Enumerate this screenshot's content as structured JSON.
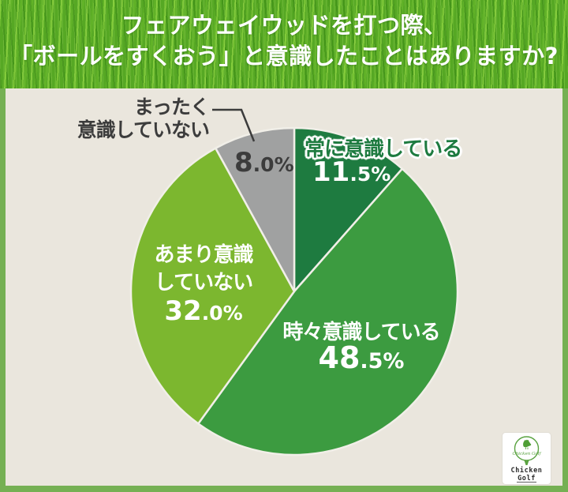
{
  "header": {
    "title_line1": "フェアウェイウッドを打つ際、",
    "title_line2": "「ボールをすくおう」と意識したことはありますか?"
  },
  "chart_data": {
    "type": "pie",
    "title": "フェアウェイウッドを打つ際、「ボールをすくおう」と意識したことはありますか?",
    "start_angle_deg": -90,
    "direction": "clockwise",
    "total": 100,
    "slices": [
      {
        "label": "常に意識している",
        "label_lines": [
          "常に意識している"
        ],
        "value": 11.5,
        "pct_big": "11",
        "pct_small": ".5%",
        "color": "#1e7b40"
      },
      {
        "label": "時々意識している",
        "label_lines": [
          "時々意識している"
        ],
        "value": 48.5,
        "pct_big": "48",
        "pct_small": ".5%",
        "color": "#3c9b40"
      },
      {
        "label": "あまり意識していない",
        "label_lines": [
          "あまり意識",
          "していない"
        ],
        "value": 32.0,
        "pct_big": "32",
        "pct_small": ".0%",
        "color": "#7cb72f"
      },
      {
        "label": "まったく意識していない",
        "label_lines": [
          "まったく",
          "意識していない"
        ],
        "value": 8.0,
        "pct_big": "8",
        "pct_small": ".0%",
        "color": "#a0a1a1"
      }
    ],
    "legend": "labels drawn on/beside slices",
    "background": "#eae6dd"
  },
  "logo": {
    "script_text": "Chicken Golf",
    "brand_line1": "Chicken",
    "brand_line2": "Golf"
  },
  "colors": {
    "frame": "#75b053",
    "background": "#eae6dd",
    "dark_text": "#3c3c3c",
    "accent_dark_green": "#1e7b40"
  }
}
